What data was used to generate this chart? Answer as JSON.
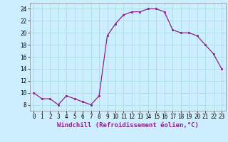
{
  "x": [
    0,
    1,
    2,
    3,
    4,
    5,
    6,
    7,
    8,
    9,
    10,
    11,
    12,
    13,
    14,
    15,
    16,
    17,
    18,
    19,
    20,
    21,
    22,
    23
  ],
  "y": [
    10,
    9,
    9,
    8,
    9.5,
    9,
    8.5,
    8,
    9.5,
    19.5,
    21.5,
    23,
    23.5,
    23.5,
    24,
    24,
    23.5,
    20.5,
    20,
    20,
    19.5,
    18,
    16.5,
    14
  ],
  "line_color": "#882288",
  "marker": "s",
  "marker_size": 2.0,
  "bg_color": "#cceeff",
  "grid_color": "#aadddd",
  "xlabel": "Windchill (Refroidissement éolien,°C)",
  "xlabel_fontsize": 6.5,
  "ylim": [
    7,
    25
  ],
  "xlim": [
    -0.5,
    23.5
  ],
  "yticks": [
    8,
    10,
    12,
    14,
    16,
    18,
    20,
    22,
    24
  ],
  "xticks": [
    0,
    1,
    2,
    3,
    4,
    5,
    6,
    7,
    8,
    9,
    10,
    11,
    12,
    13,
    14,
    15,
    16,
    17,
    18,
    19,
    20,
    21,
    22,
    23
  ],
  "tick_fontsize": 5.5
}
